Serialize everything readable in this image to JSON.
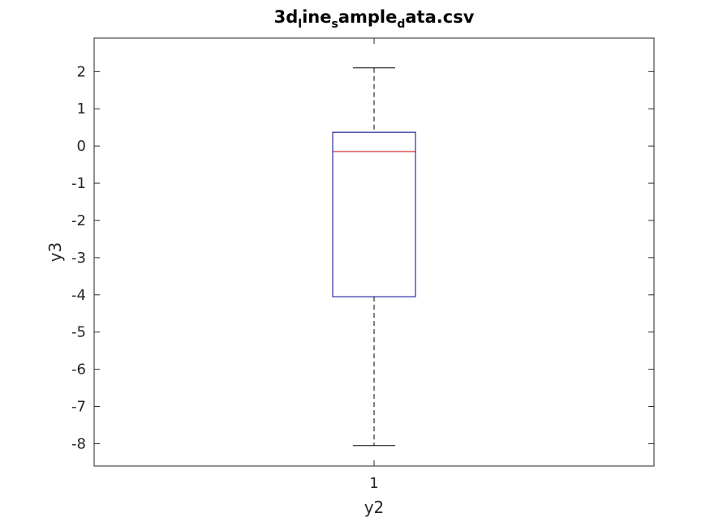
{
  "chart_data": {
    "type": "box",
    "title": {
      "parts": [
        {
          "text": "3d",
          "sub": false
        },
        {
          "text": "l",
          "sub": true
        },
        {
          "text": "ine",
          "sub": false
        },
        {
          "text": "s",
          "sub": true
        },
        {
          "text": "ample",
          "sub": false
        },
        {
          "text": "d",
          "sub": true
        },
        {
          "text": "ata.csv",
          "sub": false
        }
      ]
    },
    "xlabel": "y2",
    "ylabel": "y3",
    "categories": [
      "1"
    ],
    "boxes": [
      {
        "category": "1",
        "whisker_low": -8.05,
        "q1": -4.05,
        "median": -0.15,
        "q3": 0.37,
        "whisker_high": 2.1
      }
    ],
    "ylim": [
      -8.6,
      2.9
    ],
    "yticks": [
      -8,
      -7,
      -6,
      -5,
      -4,
      -3,
      -2,
      -1,
      0,
      1,
      2
    ],
    "ytick_labels": [
      "-8",
      "-7",
      "-6",
      "-5",
      "-4",
      "-3",
      "-2",
      "-1",
      "0",
      "1",
      "2"
    ],
    "grid": false,
    "colors": {
      "box": "#00008b",
      "median": "#c00000",
      "whisker": "#000000",
      "axes": "#262626"
    }
  }
}
